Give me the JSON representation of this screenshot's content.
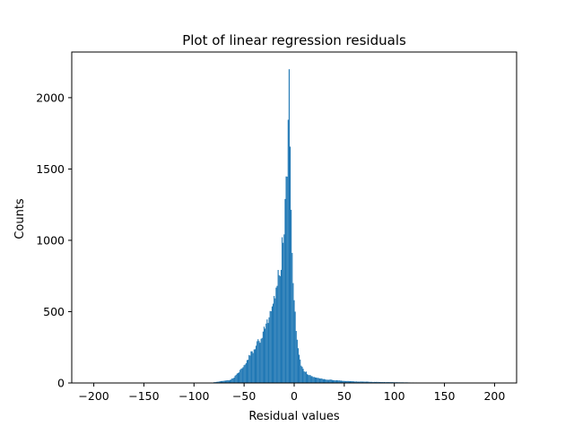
{
  "chart_data": {
    "type": "bar",
    "title": "Plot of linear regression residuals",
    "xlabel": "Residual values",
    "ylabel": "Counts",
    "xlim": [
      -222,
      222
    ],
    "ylim": [
      0,
      2320
    ],
    "grid": false,
    "bar_color": "#1f77b4",
    "bin_width": 1,
    "x_ticks": [
      -200,
      -150,
      -100,
      -50,
      0,
      50,
      100,
      150,
      200
    ],
    "x_tick_labels": [
      "−200",
      "−150",
      "−100",
      "−50",
      "0",
      "50",
      "100",
      "150",
      "200"
    ],
    "y_ticks": [
      0,
      500,
      1000,
      1500,
      2000
    ],
    "y_tick_labels": [
      "0",
      "500",
      "1000",
      "1500",
      "2000"
    ],
    "series": [
      {
        "x": [
          -80,
          -75,
          -70,
          -65,
          -62,
          -60,
          -58,
          -56,
          -54,
          -52,
          -50,
          -48,
          -46,
          -44,
          -42,
          -40,
          -38,
          -36,
          -34,
          -32,
          -30,
          -28,
          -26,
          -24,
          -22,
          -20,
          -18,
          -16,
          -14,
          -13,
          -12,
          -11,
          -10,
          -9,
          -8,
          -7,
          -6,
          -5,
          -4,
          -3,
          -2,
          -1,
          0,
          1,
          2,
          3,
          4,
          5,
          6,
          7,
          8,
          10,
          12,
          15,
          20,
          25,
          30,
          40,
          50,
          60,
          70,
          80,
          90,
          100,
          110,
          120,
          130,
          140,
          150,
          160,
          170,
          180,
          190,
          200
        ],
        "values": [
          5,
          10,
          15,
          20,
          30,
          40,
          55,
          70,
          90,
          110,
          130,
          150,
          170,
          200,
          220,
          240,
          260,
          280,
          300,
          330,
          360,
          390,
          420,
          470,
          520,
          580,
          650,
          730,
          800,
          880,
          960,
          1050,
          1150,
          1300,
          1400,
          1550,
          1800,
          2220,
          1700,
          1200,
          1000,
          700,
          580,
          500,
          400,
          300,
          250,
          200,
          160,
          130,
          110,
          90,
          75,
          55,
          40,
          32,
          25,
          20,
          15,
          11,
          9,
          7,
          6,
          5,
          4,
          3,
          3,
          2,
          2,
          2,
          1,
          1,
          1,
          1
        ]
      }
    ]
  }
}
